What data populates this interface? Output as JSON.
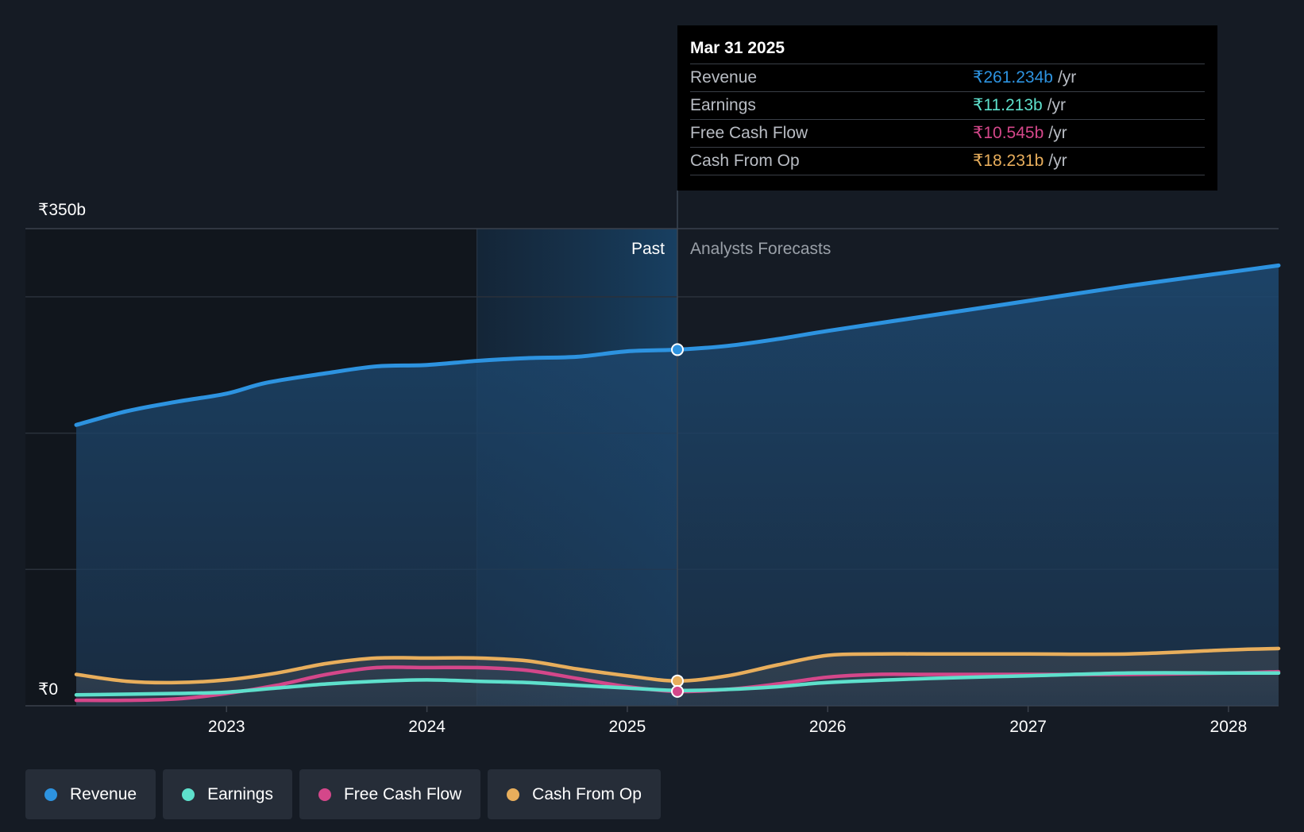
{
  "chart_data": {
    "type": "area",
    "title": "",
    "xlabel": "",
    "ylabel": "",
    "ylim": [
      0,
      350
    ],
    "xlim": [
      2022.25,
      2028.25
    ],
    "y_ticks": [
      {
        "value": 350,
        "label": "₹350b"
      },
      {
        "value": 0,
        "label": "₹0"
      }
    ],
    "gridlines": [
      350,
      300,
      200,
      100,
      0
    ],
    "x_ticks": [
      {
        "value": 2023,
        "label": "2023"
      },
      {
        "value": 2024,
        "label": "2024"
      },
      {
        "value": 2025,
        "label": "2025"
      },
      {
        "value": 2026,
        "label": "2026"
      },
      {
        "value": 2027,
        "label": "2027"
      },
      {
        "value": 2028,
        "label": "2028"
      }
    ],
    "divider_x": 2025.25,
    "highlight_start_x": 2024.25,
    "region_labels": {
      "past": "Past",
      "forecast": "Analysts Forecasts"
    },
    "series": [
      {
        "name": "Revenue",
        "color": "#2d93e0",
        "fill": true,
        "points": [
          [
            2022.25,
            206
          ],
          [
            2022.5,
            216
          ],
          [
            2022.75,
            223
          ],
          [
            2023.0,
            229
          ],
          [
            2023.2,
            237
          ],
          [
            2023.5,
            244
          ],
          [
            2023.75,
            249
          ],
          [
            2024.0,
            250
          ],
          [
            2024.25,
            253
          ],
          [
            2024.5,
            255
          ],
          [
            2024.75,
            256
          ],
          [
            2025.0,
            260
          ],
          [
            2025.25,
            261.234
          ],
          [
            2025.5,
            264
          ],
          [
            2025.75,
            269
          ],
          [
            2026.0,
            275
          ],
          [
            2026.5,
            286
          ],
          [
            2027.0,
            297
          ],
          [
            2027.5,
            308
          ],
          [
            2028.0,
            318
          ],
          [
            2028.25,
            323
          ]
        ]
      },
      {
        "name": "Earnings",
        "color": "#5ee0cc",
        "fill": false,
        "points": [
          [
            2022.25,
            8
          ],
          [
            2022.75,
            9
          ],
          [
            2023.0,
            10
          ],
          [
            2023.25,
            13
          ],
          [
            2023.5,
            16
          ],
          [
            2023.75,
            18
          ],
          [
            2024.0,
            19
          ],
          [
            2024.25,
            18
          ],
          [
            2024.5,
            17
          ],
          [
            2024.75,
            15
          ],
          [
            2025.0,
            13
          ],
          [
            2025.25,
            11.213
          ],
          [
            2025.5,
            12
          ],
          [
            2025.75,
            14
          ],
          [
            2026.0,
            17
          ],
          [
            2026.5,
            20
          ],
          [
            2027.0,
            22
          ],
          [
            2027.5,
            24
          ],
          [
            2028.0,
            24
          ],
          [
            2028.25,
            24
          ]
        ]
      },
      {
        "name": "Free Cash Flow",
        "color": "#d4478a",
        "fill": false,
        "points": [
          [
            2022.25,
            4
          ],
          [
            2022.5,
            4
          ],
          [
            2022.75,
            5
          ],
          [
            2023.0,
            9
          ],
          [
            2023.25,
            15
          ],
          [
            2023.5,
            23
          ],
          [
            2023.75,
            28
          ],
          [
            2024.0,
            28
          ],
          [
            2024.25,
            28
          ],
          [
            2024.5,
            26
          ],
          [
            2024.75,
            20
          ],
          [
            2025.0,
            14
          ],
          [
            2025.25,
            10.545
          ],
          [
            2025.5,
            12
          ],
          [
            2025.75,
            16
          ],
          [
            2026.0,
            21
          ],
          [
            2026.25,
            23
          ],
          [
            2026.5,
            23
          ],
          [
            2027.0,
            23
          ],
          [
            2027.5,
            23
          ],
          [
            2028.0,
            24
          ],
          [
            2028.25,
            25
          ]
        ]
      },
      {
        "name": "Cash From Op",
        "color": "#e8ae5c",
        "fill": false,
        "points": [
          [
            2022.25,
            23
          ],
          [
            2022.5,
            18
          ],
          [
            2022.75,
            17
          ],
          [
            2023.0,
            19
          ],
          [
            2023.25,
            24
          ],
          [
            2023.5,
            31
          ],
          [
            2023.75,
            35
          ],
          [
            2024.0,
            35
          ],
          [
            2024.25,
            35
          ],
          [
            2024.5,
            33
          ],
          [
            2024.75,
            27
          ],
          [
            2025.0,
            22
          ],
          [
            2025.25,
            18.231
          ],
          [
            2025.5,
            22
          ],
          [
            2025.75,
            30
          ],
          [
            2026.0,
            37
          ],
          [
            2026.25,
            38
          ],
          [
            2026.5,
            38
          ],
          [
            2027.0,
            38
          ],
          [
            2027.5,
            38
          ],
          [
            2028.0,
            41
          ],
          [
            2028.25,
            42
          ]
        ]
      }
    ]
  },
  "tooltip": {
    "date": "Mar 31 2025",
    "rows": [
      {
        "label": "Revenue",
        "value": "₹261.234b",
        "unit": "/yr",
        "color": "#2d93e0"
      },
      {
        "label": "Earnings",
        "value": "₹11.213b",
        "unit": "/yr",
        "color": "#5ee0cc"
      },
      {
        "label": "Free Cash Flow",
        "value": "₹10.545b",
        "unit": "/yr",
        "color": "#d4478a"
      },
      {
        "label": "Cash From Op",
        "value": "₹18.231b",
        "unit": "/yr",
        "color": "#e8ae5c"
      }
    ]
  },
  "legend": {
    "items": [
      {
        "label": "Revenue",
        "color": "#2d93e0"
      },
      {
        "label": "Earnings",
        "color": "#5ee0cc"
      },
      {
        "label": "Free Cash Flow",
        "color": "#d4478a"
      },
      {
        "label": "Cash From Op",
        "color": "#e8ae5c"
      }
    ]
  }
}
